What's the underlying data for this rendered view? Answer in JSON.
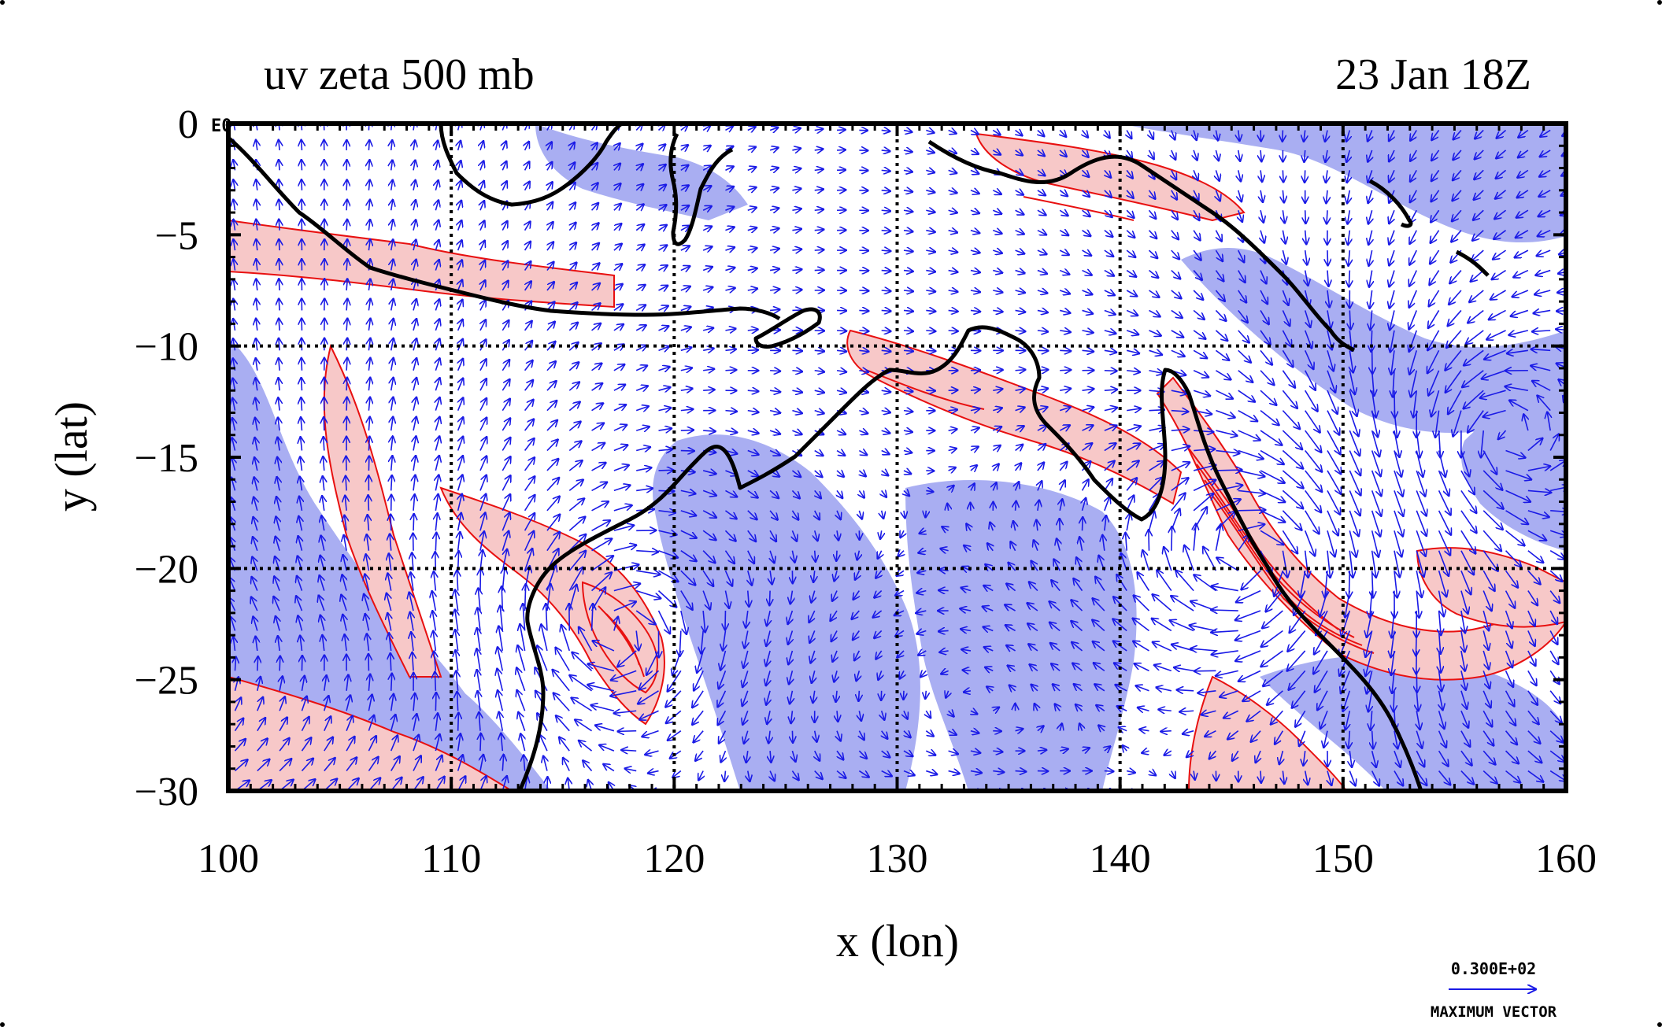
{
  "chart_data": {
    "type": "map",
    "title": "uv zeta 500 mb",
    "time_label": "23 Jan 18Z",
    "xlabel": "x (lon)",
    "ylabel": "y (lat)",
    "xlim": [
      100,
      160
    ],
    "ylim": [
      -30,
      0
    ],
    "x_ticks": [
      100,
      110,
      120,
      130,
      140,
      150,
      160
    ],
    "y_ticks": [
      0,
      -5,
      -10,
      -15,
      -20,
      -25,
      -30
    ],
    "x_tick_labels": [
      "100",
      "110",
      "120",
      "130",
      "140",
      "150",
      "160"
    ],
    "y_tick_labels": [
      "0",
      "−5",
      "−10",
      "−15",
      "−20",
      "−25",
      "−30"
    ],
    "grid_lines_x": [
      110,
      120,
      130,
      140,
      150
    ],
    "grid_lines_y": [
      -10,
      -20
    ],
    "corner_label": "E0",
    "legend": {
      "value_label": "0.300E+02",
      "caption": "MAXIMUM VECTOR"
    },
    "colors": {
      "positive_fill": "#f7c8c8",
      "positive_contour": "#e81010",
      "negative_fill": "#a9aef2",
      "vectors": "#1a1ae6",
      "coastline": "#000000",
      "frame": "#000000"
    },
    "layers": [
      "wind vectors (u, v)",
      "relative vorticity zeta shaded",
      "coastlines"
    ]
  }
}
